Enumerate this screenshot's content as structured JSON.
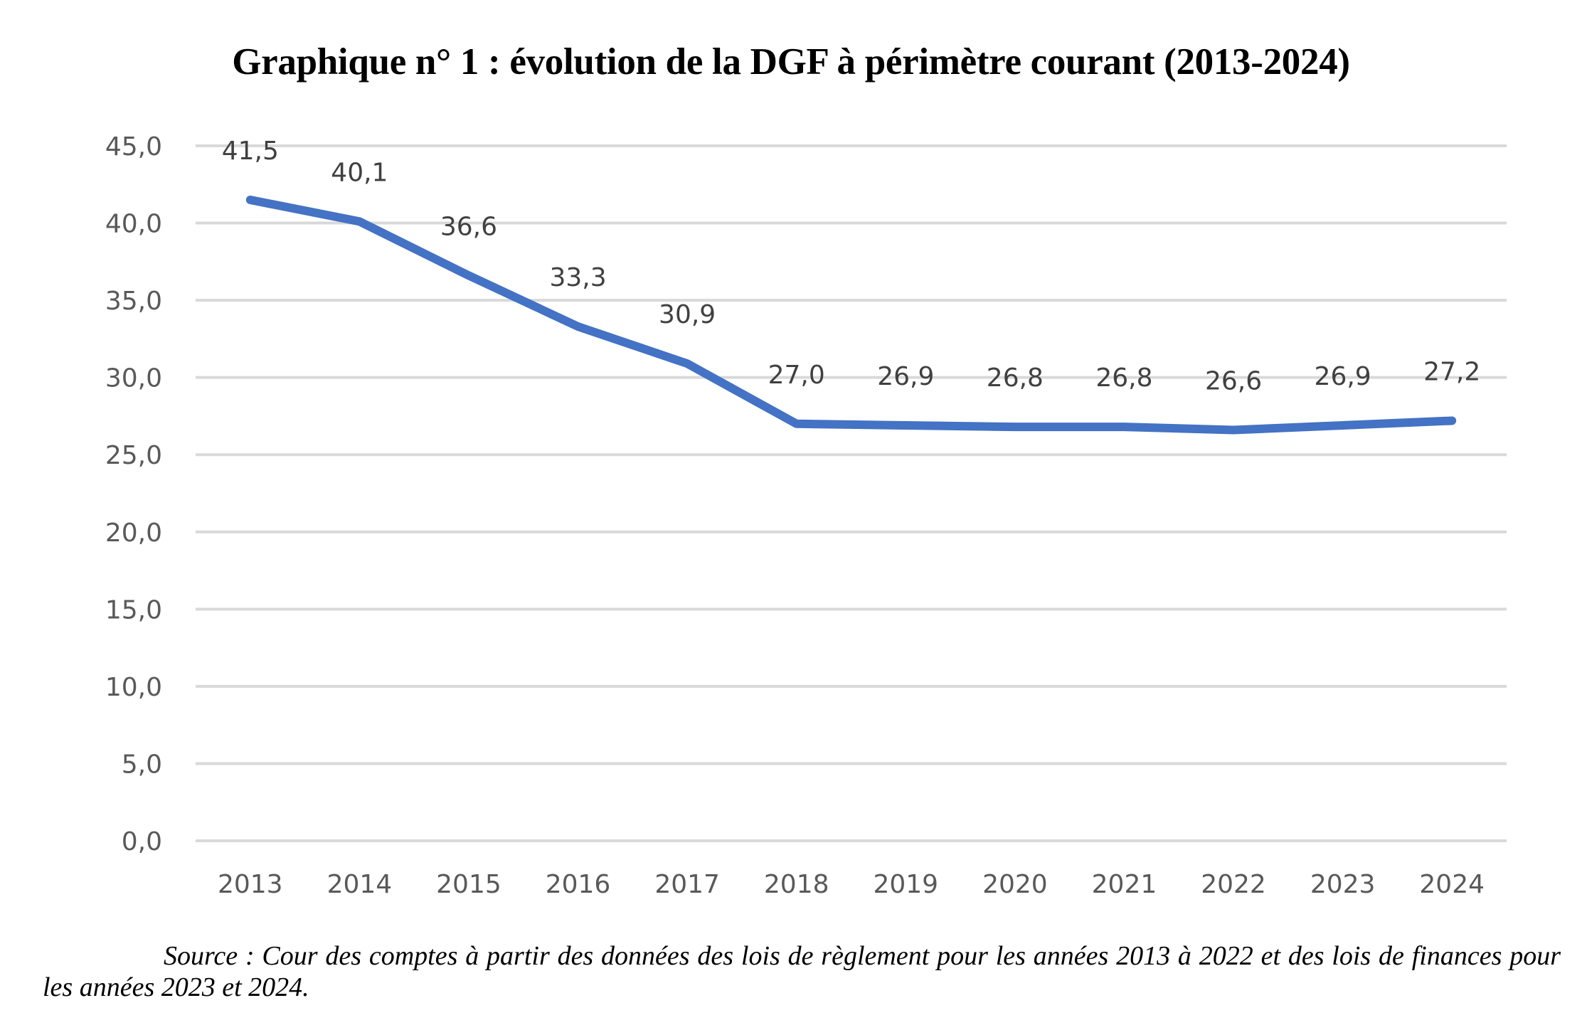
{
  "chart_data": {
    "type": "line",
    "title": "Graphique n° 1 :  évolution de la DGF à périmètre courant (2013-2024)",
    "xlabel": "",
    "ylabel": "",
    "categories": [
      "2013",
      "2014",
      "2015",
      "2016",
      "2017",
      "2018",
      "2019",
      "2020",
      "2021",
      "2022",
      "2023",
      "2024"
    ],
    "series": [
      {
        "name": "DGF",
        "values": [
          41.5,
          40.1,
          36.6,
          33.3,
          30.9,
          27.0,
          26.9,
          26.8,
          26.8,
          26.6,
          26.9,
          27.2
        ],
        "labels": [
          "41,5",
          "40,1",
          "36,6",
          "33,3",
          "30,9",
          "27,0",
          "26,9",
          "26,8",
          "26,8",
          "26,6",
          "26,9",
          "27,2"
        ],
        "color": "#4472C4"
      }
    ],
    "ylim": [
      0,
      45
    ],
    "yticks": [
      0,
      5,
      10,
      15,
      20,
      25,
      30,
      35,
      40,
      45
    ],
    "ytick_labels": [
      "0,0",
      "5,0",
      "10,0",
      "15,0",
      "20,0",
      "25,0",
      "30,0",
      "35,0",
      "40,0",
      "45,0"
    ],
    "grid": true,
    "legend": "none"
  },
  "source": "Source : Cour des comptes à partir des données des lois de règlement pour les années 2013 à 2022 et des lois de finances pour les années 2023 et 2024."
}
